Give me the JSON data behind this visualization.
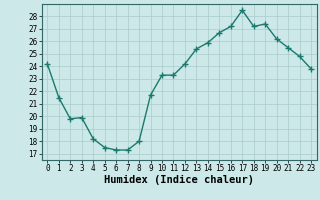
{
  "x": [
    0,
    1,
    2,
    3,
    4,
    5,
    6,
    7,
    8,
    9,
    10,
    11,
    12,
    13,
    14,
    15,
    16,
    17,
    18,
    19,
    20,
    21,
    22,
    23
  ],
  "y": [
    24.2,
    21.5,
    19.8,
    19.9,
    18.2,
    17.5,
    17.3,
    17.3,
    18.0,
    21.7,
    23.3,
    23.3,
    24.2,
    25.4,
    25.9,
    26.7,
    27.2,
    28.5,
    27.2,
    27.4,
    26.2,
    25.5,
    24.8,
    23.8
  ],
  "line_color": "#1a7a6e",
  "marker": "+",
  "bg_color": "#cce8e8",
  "grid_color": "#aacccc",
  "xlabel": "Humidex (Indice chaleur)",
  "ylim": [
    16.5,
    29.0
  ],
  "yticks": [
    17,
    18,
    19,
    20,
    21,
    22,
    23,
    24,
    25,
    26,
    27,
    28
  ],
  "xticks": [
    0,
    1,
    2,
    3,
    4,
    5,
    6,
    7,
    8,
    9,
    10,
    11,
    12,
    13,
    14,
    15,
    16,
    17,
    18,
    19,
    20,
    21,
    22,
    23
  ],
  "xlim": [
    -0.5,
    23.5
  ],
  "tick_labelsize": 5.5,
  "xlabel_fontsize": 7.5,
  "linewidth": 1.0,
  "markersize": 4,
  "markeredgewidth": 1.0
}
